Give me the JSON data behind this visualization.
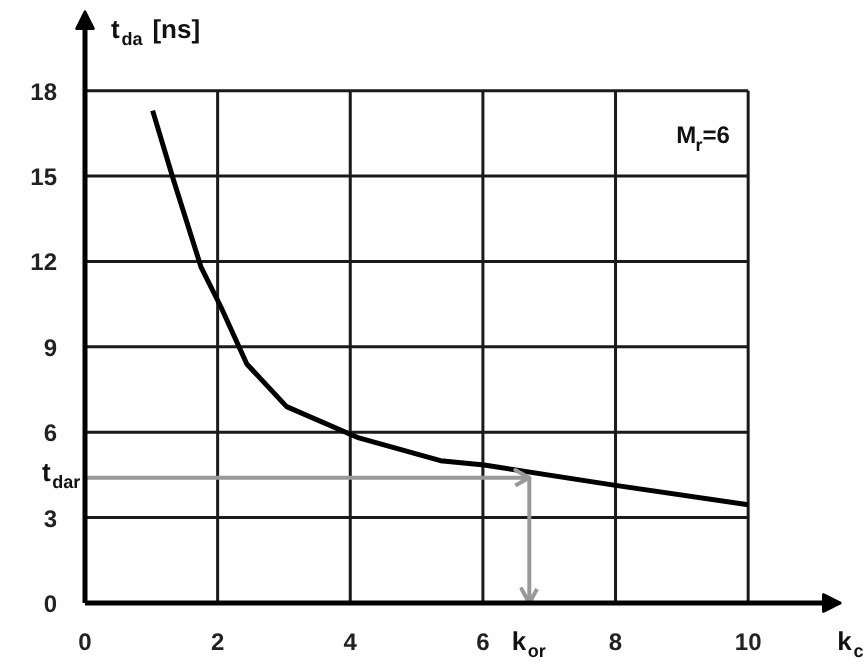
{
  "chart_data": {
    "type": "line",
    "xlabel": "k$_{c}$",
    "ylabel": "t$_{da}$ [ns]",
    "x": [
      1.02,
      1.33,
      1.75,
      2.05,
      2.44,
      3.04,
      4.13,
      5.36,
      6.02,
      7.95,
      10
    ],
    "series": [
      {
        "color": "#000000",
        "values": [
          17.3,
          14.9,
          11.8,
          10.4,
          8.4,
          6.9,
          5.8,
          5.0,
          4.85,
          4.15,
          3.45
        ]
      }
    ],
    "xlim": [
      0,
      11.4
    ],
    "ylim": [
      0,
      20.8
    ],
    "xticks": [
      0,
      2,
      4,
      6,
      8,
      10
    ],
    "yticks": [
      0,
      3,
      6,
      9,
      12,
      15,
      18
    ],
    "grid": true,
    "ref_lines": [
      {
        "axis": "y",
        "value": 4.4,
        "label": "t$_{dar}$",
        "color": "#999999"
      },
      {
        "axis": "x",
        "value": 6.7,
        "label": "k$_{or}$",
        "color": "#999999"
      }
    ],
    "annotations": [
      "M$_{r}$=6"
    ]
  }
}
